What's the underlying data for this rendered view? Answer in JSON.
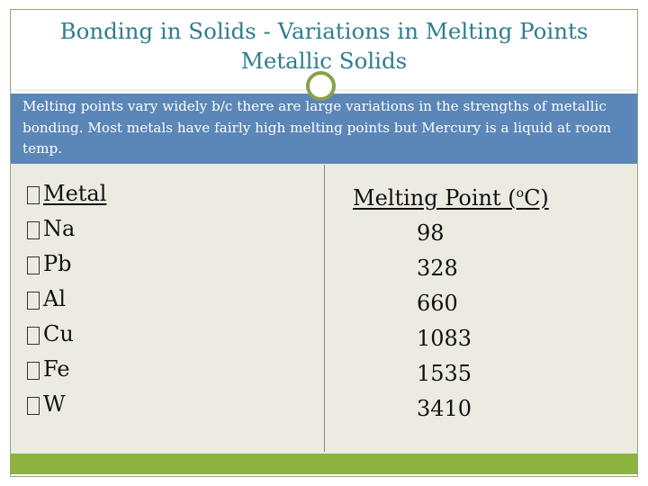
{
  "slide": {
    "title_line1": "Bonding in Solids - Variations in Melting Points",
    "title_line2": "Metallic Solids",
    "intro": "Melting points vary widely b/c there are large variations in the strengths of metallic bonding. Most metals have fairly high melting points but Mercury is a liquid at room temp."
  },
  "table": {
    "header_metal": "Metal",
    "header_mp_prefix": "Melting Point (",
    "header_mp_sup": "o",
    "header_mp_suffix": "C)",
    "rows": [
      {
        "metal": "Na",
        "mp": "98"
      },
      {
        "metal": "Pb",
        "mp": "328"
      },
      {
        "metal": "Al",
        "mp": "660"
      },
      {
        "metal": "Cu",
        "mp": "1083"
      },
      {
        "metal": "Fe",
        "mp": "1535"
      },
      {
        "metal": "W",
        "mp": "3410"
      }
    ]
  },
  "colors": {
    "title": "#2f7d8e",
    "band": "#5b86b8",
    "content_bg": "#ecebe2",
    "footer": "#8cb43e",
    "ring": "#8aa04a"
  }
}
